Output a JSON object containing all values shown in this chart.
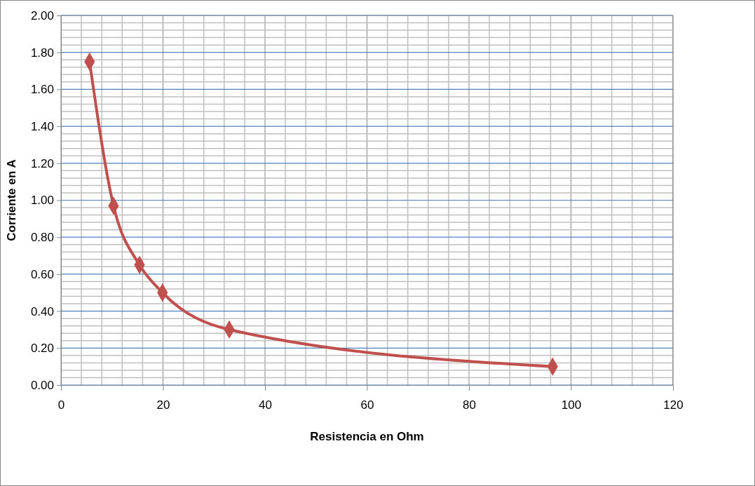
{
  "chart_data": {
    "type": "line",
    "xlabel": "Resistencia en Ohm",
    "ylabel": "Corriente en A",
    "x": [
      5.6,
      10.3,
      15.4,
      19.9,
      33.0,
      96.4
    ],
    "series": [
      {
        "color": "#c0504d",
        "values": [
          1.75,
          0.97,
          0.65,
          0.5,
          0.3,
          0.1
        ]
      }
    ],
    "xlim": [
      0,
      120
    ],
    "xticks": [
      0,
      20,
      40,
      60,
      80,
      100,
      120
    ],
    "ylim": [
      0,
      2
    ],
    "yticks": [
      {
        "value": 0,
        "label": "0.00"
      },
      {
        "value": 0.2,
        "label": "0.20"
      },
      {
        "value": 0.4,
        "label": "0.40"
      },
      {
        "value": 0.6,
        "label": "0.60"
      },
      {
        "value": 0.8,
        "label": "0.80"
      },
      {
        "value": 1,
        "label": "1.00"
      },
      {
        "value": 1.2,
        "label": "1.20"
      },
      {
        "value": 1.4,
        "label": "1.40"
      },
      {
        "value": 1.6,
        "label": "1.60"
      },
      {
        "value": 1.8,
        "label": "1.80"
      },
      {
        "value": 2,
        "label": "2.00"
      }
    ],
    "grid": true,
    "marker": "diamond",
    "line_style": "solid"
  }
}
